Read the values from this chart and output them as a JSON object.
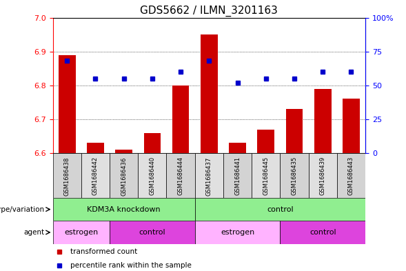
{
  "title": "GDS5662 / ILMN_3201163",
  "samples": [
    "GSM1686438",
    "GSM1686442",
    "GSM1686436",
    "GSM1686440",
    "GSM1686444",
    "GSM1686437",
    "GSM1686441",
    "GSM1686445",
    "GSM1686435",
    "GSM1686439",
    "GSM1686443"
  ],
  "transformed_count": [
    6.89,
    6.63,
    6.61,
    6.66,
    6.8,
    6.95,
    6.63,
    6.67,
    6.73,
    6.79,
    6.76
  ],
  "percentile_rank": [
    68,
    55,
    55,
    55,
    60,
    68,
    52,
    55,
    55,
    60,
    60
  ],
  "ylim": [
    6.6,
    7.0
  ],
  "yticks_left": [
    6.6,
    6.7,
    6.8,
    6.9,
    7.0
  ],
  "yticks_right": [
    0,
    25,
    50,
    75,
    100
  ],
  "bar_color": "#cc0000",
  "dot_color": "#0000cc",
  "genotype_groups": [
    {
      "label": "KDM3A knockdown",
      "start": 0,
      "end": 5,
      "color": "#90ee90"
    },
    {
      "label": "control",
      "start": 5,
      "end": 11,
      "color": "#90ee90"
    }
  ],
  "agent_groups": [
    {
      "label": "estrogen",
      "start": 0,
      "end": 2,
      "color": "#ffb3ff"
    },
    {
      "label": "control",
      "start": 2,
      "end": 5,
      "color": "#dd44dd"
    },
    {
      "label": "estrogen",
      "start": 5,
      "end": 8,
      "color": "#ffb3ff"
    },
    {
      "label": "control",
      "start": 8,
      "end": 11,
      "color": "#dd44dd"
    }
  ],
  "legend_items": [
    {
      "label": "transformed count",
      "color": "#cc0000"
    },
    {
      "label": "percentile rank within the sample",
      "color": "#0000cc"
    }
  ]
}
